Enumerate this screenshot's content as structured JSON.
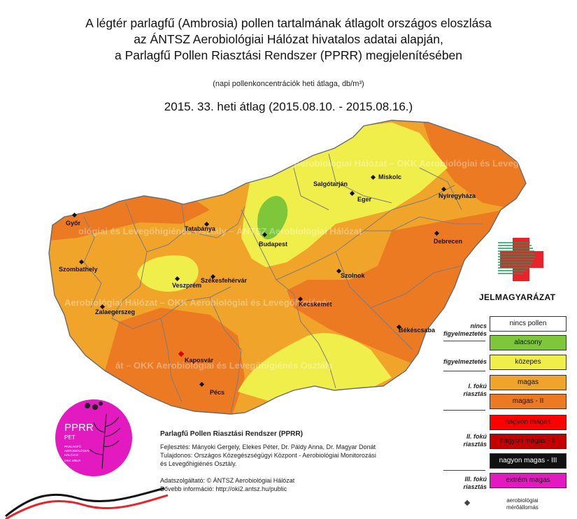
{
  "title_lines": [
    "A légtér parlagfű (Ambrosia) pollen tartalmának átlagolt országos eloszlása",
    "az ÁNTSZ Aerobiológiai Hálózat hivatalos adatai alapján,",
    "a Parlagfű Pollen Riasztási Rendszer (PPRR) megjelenítésében"
  ],
  "subtitle": "(napi pollenkoncentrációk heti átlaga, db/m³)",
  "week": "2015. 33. heti átlag (2015.08.10. - 2015.08.16.)",
  "watermark_lines": [
    "Aerobiológiai Hálózat – OKK Aerobiológiai és Levegőhigiénés Osztály",
    "ológiai és Levegőhigiénés Osztály – ÁNTSZ Aerobiológiai Hálózat",
    "Aerobiológiai Hálózat – OKK Aerobiológiai és Levegőhigiénés",
    "át – OKK Aerobiológiai és Levegőhigiénés Osztály"
  ],
  "colors": {
    "alacsony": "#7ec73a",
    "kozepes": "#f0ee4a",
    "magas": "#f0a42a",
    "magas_ii": "#ec7a22",
    "nagyon_magas": "#ff0000",
    "nagyon_magas_ii": "#c40000",
    "nagyon_magas_iii": "#111111",
    "extrem_magas": "#e21ac0",
    "nincs": "#ffffff",
    "cross_red": "#e8232a",
    "cross_green": "#1a9a58"
  },
  "cities": [
    {
      "name": "Salgótarján"
    },
    {
      "name": "Miskolc"
    },
    {
      "name": "Eger"
    },
    {
      "name": "Nyíregyháza"
    },
    {
      "name": "Győr"
    },
    {
      "name": "Tatabánya"
    },
    {
      "name": "Budapest"
    },
    {
      "name": "Debrecen"
    },
    {
      "name": "Szombathely"
    },
    {
      "name": "Veszprém"
    },
    {
      "name": "Székesfehérvár"
    },
    {
      "name": "Szolnok"
    },
    {
      "name": "Zalaegerszeg"
    },
    {
      "name": "Kecskemét"
    },
    {
      "name": "Békéscsaba"
    },
    {
      "name": "Kaposvár"
    },
    {
      "name": "Pécs"
    }
  ],
  "legend": {
    "title": "JELMAGYARÁZAT",
    "levels": [
      {
        "label": "nincs pollen",
        "color_key": "nincs",
        "text_color": "#111"
      },
      {
        "label": "alacsony",
        "color_key": "alacsony",
        "text_color": "#111"
      },
      {
        "label": "közepes",
        "color_key": "kozepes",
        "text_color": "#111"
      },
      {
        "label": "magas",
        "color_key": "magas",
        "text_color": "#111"
      },
      {
        "label": "magas - II",
        "color_key": "magas_ii",
        "text_color": "#111"
      },
      {
        "label": "nagyon magas",
        "color_key": "nagyon_magas",
        "text_color": "#111"
      },
      {
        "label": "nagyon magas - II",
        "color_key": "nagyon_magas_ii",
        "text_color": "#111"
      },
      {
        "label": "nagyon magas - III",
        "color_key": "nagyon_magas_iii",
        "text_color": "#ffffff"
      },
      {
        "label": "extrém magas",
        "color_key": "extrem_magas",
        "text_color": "#111"
      }
    ],
    "groups": [
      {
        "label": "nincs\nfigyelmeztetés"
      },
      {
        "label": "figyelmeztetés"
      },
      {
        "label": "I. fokú\nriasztás"
      },
      {
        "label": "II. fokú\nriasztás"
      },
      {
        "label": "III. fokú\nriasztás"
      }
    ],
    "station_label": "aerobiológiai\nmérőállomás"
  },
  "pprr_badge": {
    "title": "PPRR",
    "sub": "PET",
    "small_lines": [
      "PARLAGFŰ",
      "AEROBIOLÓGIAI",
      "HÁLÓZAT",
      "OKK MBLR"
    ]
  },
  "info": {
    "heading": "Parlagfű Pollen Riasztási Rendszer (PPRR)",
    "lines": [
      "Fejlesztés: Mányoki Gergely, Elekes Péter, Dr. Páldy Anna, Dr. Magyar Donát",
      "Tulajdonos: Országos Közegészségügyi Központ - Aerobiológiai Monitorozási",
      "és Levegőhigiénés Osztály."
    ],
    "lines2": [
      "Adatszolgáltató: © ÁNTSZ Aerobiológiai Hálózat",
      "Bővebb információ: http://oki2.antsz.hu/public"
    ]
  }
}
